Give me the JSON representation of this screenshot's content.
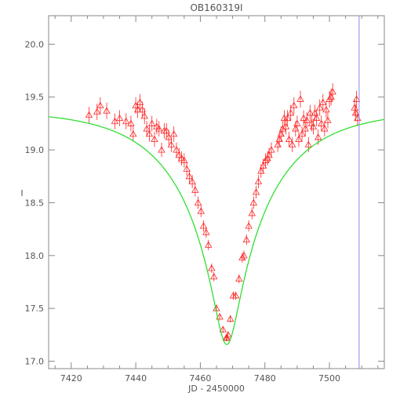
{
  "chart_data": {
    "type": "scatter",
    "title": "OB160319I",
    "xlabel": "JD - 2450000",
    "ylabel": "I",
    "xlim": [
      7413,
      7517
    ],
    "ylim": [
      20.27,
      16.93
    ],
    "y_inverted": true,
    "x_ticks": [
      7420,
      7440,
      7460,
      7480,
      7500
    ],
    "y_ticks": [
      "17.0",
      "17.5",
      "18.0",
      "18.5",
      "19.0",
      "19.5",
      "20.0"
    ],
    "y_tick_values": [
      17.0,
      17.5,
      18.0,
      18.5,
      19.0,
      19.5,
      20.0
    ],
    "grid": false,
    "vertical_marker": {
      "x": 7509.2,
      "color": "#8888ee"
    },
    "model_color": "#22dd22",
    "point_color": "#ff2222",
    "model": {
      "baseline": 19.38,
      "t0": 7468.2,
      "u0": 0.13,
      "tE": 28.0
    },
    "series": [
      {
        "marker": "triangle",
        "x": [
          7425.5,
          7428.0,
          7429.0,
          7431.0,
          7433.5,
          7435.0,
          7437.0,
          7438.5,
          7439.2,
          7440.0,
          7440.6,
          7441.3,
          7442.0,
          7442.7,
          7443.4,
          7444.2,
          7445.0,
          7445.8,
          7446.5,
          7447.2,
          7448.0,
          7448.8,
          7449.5,
          7450.2,
          7451.0,
          7451.8,
          7452.6,
          7453.4,
          7454.2,
          7455.0,
          7455.8,
          7456.6,
          7457.5,
          7458.4,
          7459.3,
          7460.2,
          7461.0,
          7461.8,
          7462.5,
          7463.5,
          7464.2,
          7465.0,
          7466.0,
          7467.0,
          7468.0,
          7468.3,
          7468.6,
          7469.3,
          7470.2,
          7471.0,
          7472.0,
          7473.0,
          7473.5,
          7474.3,
          7475.0,
          7476.0,
          7476.5,
          7477.3,
          7478.0,
          7478.8,
          7479.5,
          7480.2,
          7480.8,
          7481.3,
          7482.0,
          7484.0,
          7484.5,
          7485.0,
          7485.5,
          7486.0,
          7486.5,
          7487.0,
          7487.5,
          7488.0,
          7488.5,
          7489.0,
          7489.5,
          7490.0,
          7490.5,
          7491.0,
          7491.5,
          7492.0,
          7492.5,
          7493.0,
          7493.5,
          7494.0,
          7494.5,
          7495.0,
          7495.5,
          7496.0,
          7496.5,
          7497.0,
          7497.5,
          7498.0,
          7498.5,
          7499.0,
          7499.5,
          7500.0,
          7500.5,
          7501.0,
          7507.8,
          7508.1,
          7508.4,
          7508.7
        ],
        "y": [
          19.33,
          19.36,
          19.42,
          19.37,
          19.27,
          19.3,
          19.27,
          19.25,
          19.15,
          19.42,
          19.38,
          19.45,
          19.38,
          19.32,
          19.2,
          19.15,
          19.25,
          19.1,
          19.22,
          19.2,
          19.0,
          19.18,
          19.18,
          19.12,
          19.05,
          19.15,
          19.0,
          18.95,
          18.92,
          18.9,
          18.82,
          18.75,
          18.7,
          18.62,
          18.5,
          18.42,
          18.28,
          18.22,
          18.1,
          17.88,
          17.8,
          17.5,
          17.42,
          17.3,
          17.22,
          17.22,
          17.25,
          17.4,
          17.62,
          17.62,
          17.78,
          17.98,
          18.0,
          18.15,
          18.28,
          18.4,
          18.5,
          18.6,
          18.7,
          18.8,
          18.85,
          18.9,
          18.92,
          18.95,
          19.0,
          19.05,
          19.1,
          19.15,
          19.2,
          19.3,
          19.22,
          19.3,
          19.1,
          19.35,
          19.05,
          19.42,
          19.2,
          19.25,
          19.1,
          19.48,
          19.15,
          19.3,
          19.2,
          19.28,
          19.05,
          19.35,
          19.25,
          19.22,
          19.35,
          19.3,
          19.12,
          19.4,
          19.25,
          19.45,
          19.2,
          19.38,
          19.28,
          19.48,
          19.5,
          19.55,
          19.4,
          19.35,
          19.48,
          19.3
        ]
      }
    ]
  }
}
